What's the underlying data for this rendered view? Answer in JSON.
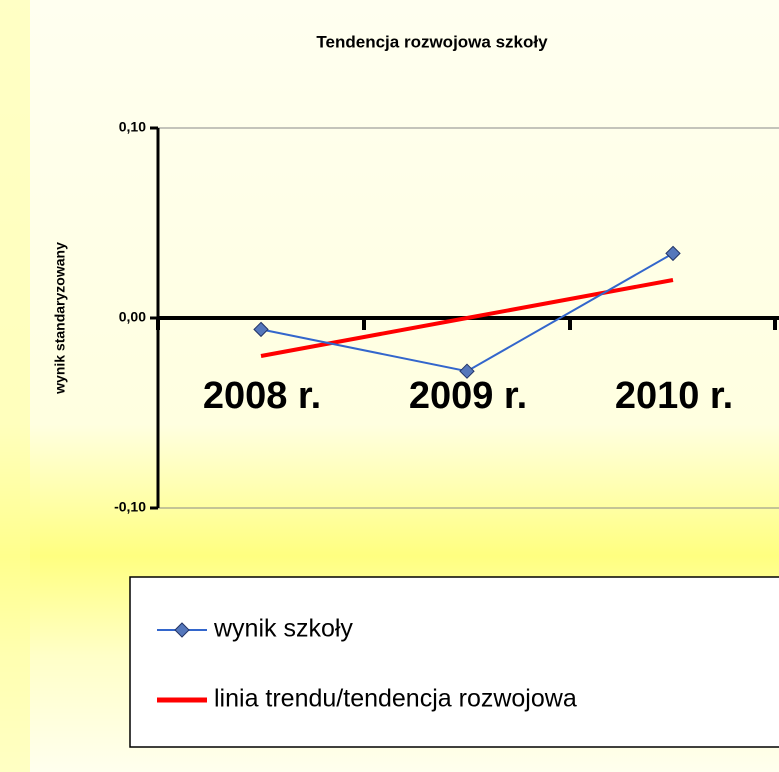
{
  "chart_data": {
    "type": "line",
    "title": "Tendencja rozwojowa szkoły",
    "y_label": "wynik standaryzowany",
    "categories": [
      "2008 r.",
      "2009 r.",
      "2010 r."
    ],
    "series": [
      {
        "name": "wynik szkoły",
        "color": "#3366cc",
        "marker": "diamond",
        "values": [
          -0.006,
          -0.028,
          0.034
        ]
      },
      {
        "name": "linia trendu/tendencja rozwojowa",
        "color": "#ff0000",
        "marker": "none",
        "values": [
          -0.02,
          0.0,
          0.02
        ]
      }
    ],
    "ylim": [
      -0.1,
      0.1
    ],
    "yticks": [
      {
        "value": -0.1,
        "label": "-0,10"
      },
      {
        "value": 0,
        "label": "0,00"
      },
      {
        "value": 0.1,
        "label": "0,10"
      }
    ],
    "grid": true
  }
}
